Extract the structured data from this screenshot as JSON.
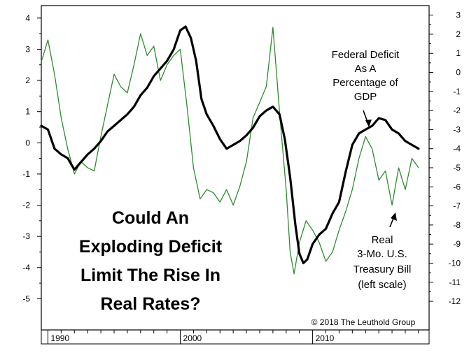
{
  "chart_data": {
    "type": "line",
    "title": "",
    "headline": [
      "Could An",
      "Exploding Deficit",
      "Limit The Rise In",
      "Real Rates?"
    ],
    "copyright": "© 2018 The Leuthold Group",
    "x_axis": {
      "range": [
        1989.5,
        2018.8
      ],
      "tick_labels": [
        "1990",
        "2000",
        "2010"
      ],
      "tick_values": [
        1990,
        2000,
        2010
      ]
    },
    "left_axis": {
      "range": [
        -6,
        4.4
      ],
      "tick_values": [
        4,
        3,
        2,
        1,
        0,
        -1,
        -2,
        -3,
        -4,
        -5
      ],
      "tick_labels": [
        "4",
        "3",
        "2",
        "1",
        "0",
        "-1",
        "-2",
        "-3",
        "-4",
        "-5"
      ]
    },
    "right_axis": {
      "range": [
        -13.5,
        3.5
      ],
      "tick_values": [
        3,
        2,
        1,
        0,
        -1,
        -2,
        -3,
        -4,
        -5,
        -6,
        -7,
        -8,
        -9,
        -10,
        -11,
        -12
      ],
      "tick_labels": [
        "3",
        "2",
        "1",
        "0",
        "-1",
        "-2",
        "-3",
        "-4",
        "-5",
        "-6",
        "-7",
        "-8",
        "-9",
        "-10",
        "-11",
        "-12"
      ]
    },
    "series": [
      {
        "name": "Federal Deficit As A Percentage of GDP",
        "axis": "right",
        "color": "#000000",
        "x": [
          1989.5,
          1990.0,
          1990.5,
          1991.0,
          1991.5,
          1992.0,
          1992.5,
          1993.0,
          1993.5,
          1994.0,
          1994.5,
          1995.0,
          1995.5,
          1996.0,
          1996.5,
          1997.0,
          1997.5,
          1998.0,
          1998.5,
          1999.0,
          1999.5,
          2000.0,
          2000.4,
          2000.8,
          2001.2,
          2001.6,
          2002.0,
          2002.5,
          2003.0,
          2003.5,
          2004.0,
          2004.5,
          2005.0,
          2005.5,
          2006.0,
          2006.5,
          2007.0,
          2007.5,
          2007.9,
          2008.3,
          2008.7,
          2009.0,
          2009.3,
          2009.6,
          2010.0,
          2010.5,
          2011.0,
          2011.5,
          2012.0,
          2012.5,
          2013.0,
          2013.5,
          2014.0,
          2014.5,
          2015.0,
          2015.5,
          2016.0,
          2016.5,
          2017.0,
          2017.5,
          2018.0
        ],
        "values": [
          -2.8,
          -3.0,
          -4.0,
          -4.3,
          -4.5,
          -5.1,
          -4.7,
          -4.3,
          -4.0,
          -3.6,
          -3.1,
          -2.8,
          -2.5,
          -2.2,
          -1.8,
          -1.2,
          -0.8,
          -0.2,
          0.2,
          0.6,
          1.2,
          2.2,
          2.4,
          1.8,
          0.6,
          -1.4,
          -2.2,
          -2.8,
          -3.5,
          -4.0,
          -3.8,
          -3.6,
          -3.3,
          -2.9,
          -2.3,
          -2.0,
          -1.8,
          -2.2,
          -3.5,
          -5.5,
          -8.0,
          -9.5,
          -10.0,
          -9.8,
          -9.0,
          -8.5,
          -8.2,
          -7.4,
          -6.8,
          -5.2,
          -3.8,
          -3.2,
          -3.0,
          -2.8,
          -2.4,
          -2.5,
          -3.0,
          -3.2,
          -3.6,
          -3.8,
          -4.0
        ]
      },
      {
        "name": "Real 3-Mo. U.S. Treasury Bill (left scale)",
        "axis": "left",
        "color": "#2e8b2e",
        "x": [
          1989.5,
          1990.0,
          1990.5,
          1991.0,
          1991.5,
          1992.0,
          1992.5,
          1993.0,
          1993.5,
          1994.0,
          1994.5,
          1995.0,
          1995.5,
          1996.0,
          1996.5,
          1997.0,
          1997.5,
          1998.0,
          1998.5,
          1999.0,
          1999.5,
          2000.0,
          2000.5,
          2001.0,
          2001.5,
          2002.0,
          2002.5,
          2003.0,
          2003.5,
          2004.0,
          2004.5,
          2005.0,
          2005.5,
          2006.0,
          2006.5,
          2007.0,
          2007.5,
          2008.0,
          2008.3,
          2008.6,
          2009.0,
          2009.5,
          2010.0,
          2010.5,
          2011.0,
          2011.5,
          2012.0,
          2012.5,
          2013.0,
          2013.5,
          2014.0,
          2014.5,
          2015.0,
          2015.5,
          2016.0,
          2016.5,
          2017.0,
          2017.5,
          2018.0
        ],
        "values": [
          2.6,
          3.3,
          2.2,
          0.8,
          -0.2,
          -1.0,
          -0.6,
          -0.8,
          -0.9,
          0.2,
          1.2,
          2.2,
          1.8,
          1.6,
          2.5,
          3.5,
          2.8,
          3.1,
          2.0,
          2.5,
          2.8,
          3.0,
          1.2,
          -0.8,
          -1.8,
          -1.5,
          -1.6,
          -1.9,
          -1.5,
          -2.0,
          -1.4,
          -0.6,
          0.8,
          1.3,
          1.8,
          3.7,
          1.0,
          -1.5,
          -3.5,
          -4.2,
          -3.2,
          -2.5,
          -2.8,
          -3.2,
          -3.8,
          -3.5,
          -2.8,
          -2.2,
          -1.5,
          -0.5,
          0.2,
          -0.2,
          -1.2,
          -0.9,
          -2.0,
          -0.8,
          -1.5,
          -0.5,
          -0.8
        ]
      }
    ],
    "annotations": {
      "deficit_label": [
        "Federal Deficit",
        "As A",
        "Percentage of",
        "GDP"
      ],
      "tbill_label": [
        "Real",
        "3-Mo. U.S.",
        "Treasury Bill",
        "(left scale)"
      ]
    }
  }
}
